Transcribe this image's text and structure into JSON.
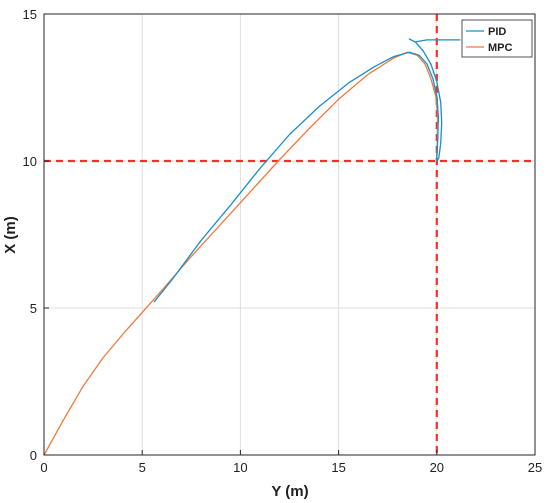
{
  "chart_data": {
    "type": "line",
    "xlabel": "Y (m)",
    "ylabel": "X (m)",
    "xlim": [
      0,
      25
    ],
    "ylim": [
      0,
      15
    ],
    "xticks": [
      0,
      5,
      10,
      15,
      20,
      25
    ],
    "yticks": [
      0,
      5,
      10,
      15
    ],
    "grid": true,
    "legend_position": "top-right",
    "reference_lines": [
      {
        "orientation": "vertical",
        "value": 20,
        "color": "#ff2a2a",
        "style": "dashed"
      },
      {
        "orientation": "horizontal",
        "value": 10,
        "color": "#ff2a2a",
        "style": "dashed"
      }
    ],
    "series": [
      {
        "name": "PID",
        "color": "#1a8fc7",
        "points": [
          [
            5.6,
            5.2
          ],
          [
            6.5,
            5.95
          ],
          [
            8.0,
            7.3
          ],
          [
            9.5,
            8.5
          ],
          [
            11.0,
            9.75
          ],
          [
            12.5,
            10.9
          ],
          [
            14.0,
            11.85
          ],
          [
            15.5,
            12.65
          ],
          [
            16.8,
            13.2
          ],
          [
            17.8,
            13.55
          ],
          [
            18.6,
            13.7
          ],
          [
            19.1,
            13.6
          ],
          [
            19.5,
            13.3
          ],
          [
            19.8,
            12.8
          ],
          [
            20.0,
            12.2
          ],
          [
            20.08,
            11.5
          ],
          [
            20.05,
            10.8
          ],
          [
            20.0,
            10.2
          ],
          [
            20.0,
            10.0
          ],
          [
            20.1,
            10.1
          ],
          [
            20.2,
            10.6
          ],
          [
            20.25,
            11.3
          ],
          [
            20.2,
            12.0
          ],
          [
            20.0,
            12.7
          ],
          [
            19.7,
            13.3
          ],
          [
            19.3,
            13.75
          ],
          [
            18.9,
            14.05
          ],
          [
            18.6,
            14.15
          ],
          [
            18.9,
            14.05
          ],
          [
            19.5,
            14.12
          ],
          [
            20.3,
            14.12
          ],
          [
            21.2,
            14.12
          ]
        ]
      },
      {
        "name": "MPC",
        "color": "#f07a3c",
        "points": [
          [
            0,
            0
          ],
          [
            1.0,
            1.2
          ],
          [
            2.0,
            2.35
          ],
          [
            3.0,
            3.3
          ],
          [
            4.0,
            4.1
          ],
          [
            5.0,
            4.85
          ],
          [
            6.0,
            5.6
          ],
          [
            7.5,
            6.75
          ],
          [
            9.0,
            7.85
          ],
          [
            10.5,
            8.95
          ],
          [
            12.0,
            10.05
          ],
          [
            13.5,
            11.1
          ],
          [
            15.0,
            12.1
          ],
          [
            16.5,
            12.95
          ],
          [
            17.8,
            13.5
          ],
          [
            18.5,
            13.7
          ],
          [
            19.0,
            13.6
          ],
          [
            19.4,
            13.3
          ],
          [
            19.7,
            12.8
          ],
          [
            19.95,
            12.2
          ],
          [
            20.05,
            11.5
          ],
          [
            20.05,
            10.8
          ],
          [
            20.0,
            10.0
          ]
        ]
      }
    ]
  }
}
